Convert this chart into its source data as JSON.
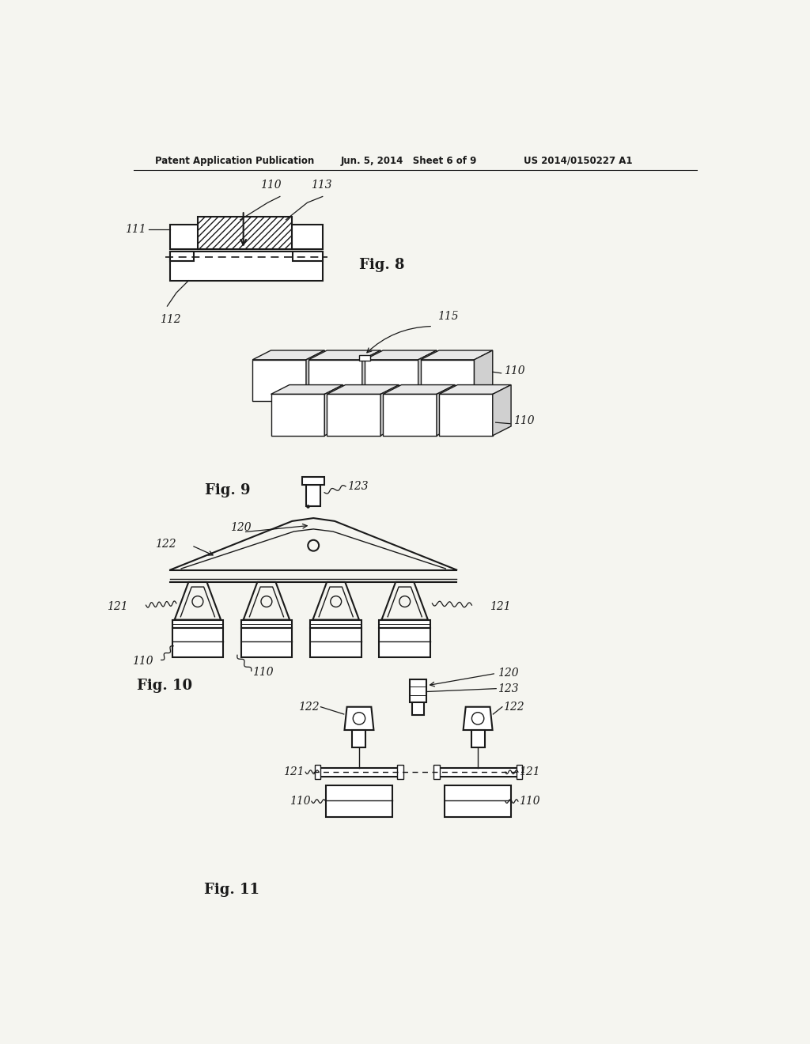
{
  "title_left": "Patent Application Publication",
  "title_center": "Jun. 5, 2014   Sheet 6 of 9",
  "title_right": "US 2014/0150227 A1",
  "background_color": "#f5f5f0",
  "text_color": "#1a1a1a",
  "line_color": "#1a1a1a",
  "fig8_label": "Fig. 8",
  "fig9_label": "Fig. 9",
  "fig10_label": "Fig. 10",
  "fig11_label": "Fig. 11"
}
